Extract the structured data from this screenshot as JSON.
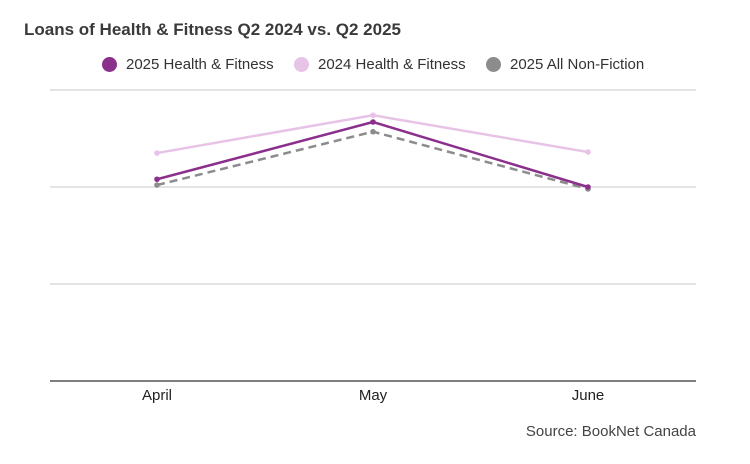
{
  "title": "Loans of Health & Fitness Q2 2024 vs. Q2 2025",
  "source": "Source: BookNet Canada",
  "colors": {
    "series_2025_hf": "#8b2f8d",
    "series_2024_hf": "#e6c3e7",
    "series_2025_nf": "#8c8c8c",
    "gridline": "#c8c8c8",
    "axis": "#333333"
  },
  "chart_data": {
    "type": "line",
    "title": "Loans of Health & Fitness Q2 2024 vs. Q2 2025",
    "xlabel": "",
    "ylabel": "",
    "categories": [
      "April",
      "May",
      "June"
    ],
    "series": [
      {
        "name": "2025 Health & Fitness",
        "values": [
          2.08,
          2.67,
          2.0
        ],
        "color": "#8b2f8d",
        "dash": false
      },
      {
        "name": "2024 Health & Fitness",
        "values": [
          2.35,
          2.74,
          2.36
        ],
        "color": "#e6c3e7",
        "dash": false
      },
      {
        "name": "2025 All Non-Fiction",
        "values": [
          2.02,
          2.57,
          1.98
        ],
        "color": "#8c8c8c",
        "dash": true
      }
    ],
    "ylim": [
      0,
      3
    ],
    "y_ticks_labeled": false,
    "grid": true,
    "legend_position": "top"
  }
}
